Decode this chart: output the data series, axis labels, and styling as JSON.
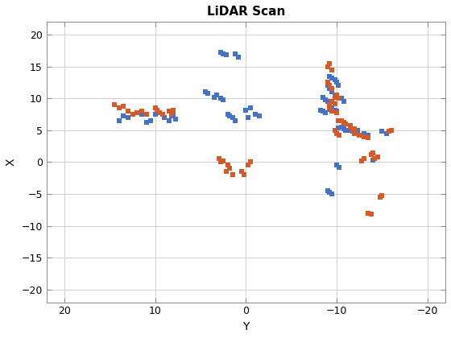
{
  "title": "LiDAR Scan",
  "xlabel": "Y",
  "ylabel": "X",
  "xlim": [
    22,
    -22
  ],
  "ylim": [
    -22,
    22
  ],
  "xticks": [
    20,
    10,
    0,
    -10,
    -20
  ],
  "yticks": [
    -20,
    -15,
    -10,
    -5,
    0,
    5,
    10,
    15,
    20
  ],
  "blue_color": "#4472C4",
  "orange_color": "#D55A27",
  "marker_size": 5,
  "blue_points": [
    [
      13,
      7
    ],
    [
      13.5,
      7.2
    ],
    [
      14,
      6.5
    ],
    [
      12,
      7.8
    ],
    [
      11.5,
      7.5
    ],
    [
      11,
      6.2
    ],
    [
      10.5,
      6.5
    ],
    [
      10,
      7.5
    ],
    [
      9.5,
      7.8
    ],
    [
      9,
      7.0
    ],
    [
      8.5,
      6.5
    ],
    [
      8.2,
      7.2
    ],
    [
      8.0,
      7.5
    ],
    [
      7.8,
      6.8
    ],
    [
      4.5,
      11
    ],
    [
      4.2,
      10.8
    ],
    [
      3.5,
      10.2
    ],
    [
      3.2,
      10.5
    ],
    [
      2.5,
      9.8
    ],
    [
      2.8,
      10.0
    ],
    [
      2,
      7.5
    ],
    [
      1.8,
      7.2
    ],
    [
      1.5,
      7.0
    ],
    [
      1.2,
      6.5
    ],
    [
      2.5,
      17
    ],
    [
      2.8,
      17.2
    ],
    [
      2.2,
      16.8
    ],
    [
      1.2,
      17
    ],
    [
      0.8,
      16.5
    ],
    [
      -1,
      7.5
    ],
    [
      -1.5,
      7.2
    ],
    [
      -0.5,
      8.5
    ],
    [
      0,
      8.2
    ],
    [
      -0.2,
      7.0
    ],
    [
      -9.2,
      13.5
    ],
    [
      -9.5,
      13.2
    ],
    [
      -9.8,
      13.0
    ],
    [
      -10.0,
      12.5
    ],
    [
      -10.2,
      12.0
    ],
    [
      -9,
      12
    ],
    [
      -9.2,
      11.5
    ],
    [
      -9.5,
      11.0
    ],
    [
      -9.8,
      10.5
    ],
    [
      -8.5,
      10.2
    ],
    [
      -8.8,
      9.8
    ],
    [
      -9.0,
      9.5
    ],
    [
      -9.2,
      9.2
    ],
    [
      -10.5,
      10.0
    ],
    [
      -10.8,
      9.5
    ],
    [
      -9.5,
      8.5
    ],
    [
      -9.8,
      8.2
    ],
    [
      -10.0,
      8.0
    ],
    [
      -9.2,
      8.3
    ],
    [
      -8.5,
      8.0
    ],
    [
      -8.8,
      7.8
    ],
    [
      -8.2,
      8.2
    ],
    [
      -10.5,
      5.5
    ],
    [
      -10.8,
      5.2
    ],
    [
      -11,
      5.0
    ],
    [
      -10.2,
      5.3
    ],
    [
      -11.5,
      5.0
    ],
    [
      -11.8,
      4.8
    ],
    [
      -12,
      5.2
    ],
    [
      -12.3,
      5.0
    ],
    [
      -13,
      4.5
    ],
    [
      -13.5,
      4.2
    ],
    [
      -15,
      4.8
    ],
    [
      -15.5,
      4.5
    ],
    [
      -14,
      0.3
    ],
    [
      -10,
      -0.5
    ],
    [
      -10.3,
      -0.8
    ],
    [
      -9,
      -4.5
    ],
    [
      -9.2,
      -4.8
    ],
    [
      -9.5,
      -5.0
    ]
  ],
  "orange_points": [
    [
      14,
      8.5
    ],
    [
      14.5,
      9
    ],
    [
      13.5,
      8.8
    ],
    [
      13,
      8.0
    ],
    [
      12.5,
      7.5
    ],
    [
      12,
      7.8
    ],
    [
      11.5,
      8.0
    ],
    [
      11,
      7.5
    ],
    [
      10,
      8.5
    ],
    [
      9.8,
      8.2
    ],
    [
      9.5,
      7.8
    ],
    [
      9.2,
      7.5
    ],
    [
      8.5,
      8.0
    ],
    [
      8.2,
      7.5
    ],
    [
      8.0,
      8.2
    ],
    [
      3,
      0.5
    ],
    [
      2.5,
      0.2
    ],
    [
      2.8,
      0.0
    ],
    [
      2,
      -0.5
    ],
    [
      1.8,
      -1.0
    ],
    [
      2.2,
      -1.5
    ],
    [
      1.5,
      -2.0
    ],
    [
      -0.5,
      0
    ],
    [
      -0.2,
      -0.5
    ],
    [
      0.5,
      -1.5
    ],
    [
      0.2,
      -2.0
    ],
    [
      -9,
      15
    ],
    [
      -9.2,
      15.5
    ],
    [
      -9.5,
      14.5
    ],
    [
      -9,
      12.5
    ],
    [
      -9.2,
      12.0
    ],
    [
      -9.5,
      11.5
    ],
    [
      -10,
      10.5
    ],
    [
      -10.2,
      10.0
    ],
    [
      -9.8,
      10.2
    ],
    [
      -9.5,
      9.5
    ],
    [
      -9.8,
      9.2
    ],
    [
      -9.2,
      9.0
    ],
    [
      -9.5,
      8.0
    ],
    [
      -9.2,
      8.5
    ],
    [
      -10,
      7.8
    ],
    [
      -10.5,
      6.5
    ],
    [
      -10.8,
      6.2
    ],
    [
      -10.2,
      6.5
    ],
    [
      -11,
      6.0
    ],
    [
      -11.5,
      5.8
    ],
    [
      -11.5,
      5.5
    ],
    [
      -12,
      5.2
    ],
    [
      -11.8,
      5.0
    ],
    [
      -10,
      4.5
    ],
    [
      -10.3,
      4.2
    ],
    [
      -9.8,
      5.0
    ],
    [
      -12,
      4.5
    ],
    [
      -12.5,
      4.2
    ],
    [
      -13,
      4.0
    ],
    [
      -13.5,
      3.8
    ],
    [
      -16,
      5.0
    ],
    [
      -15.8,
      4.8
    ],
    [
      -14,
      1.5
    ],
    [
      -13.8,
      1.2
    ],
    [
      -14.5,
      0.8
    ],
    [
      -14.2,
      0.5
    ],
    [
      -13,
      0.5
    ],
    [
      -12.8,
      0.2
    ],
    [
      -15,
      -5.2
    ],
    [
      -14.8,
      -5.5
    ],
    [
      -13.5,
      -8
    ],
    [
      -13.8,
      -8.2
    ]
  ]
}
